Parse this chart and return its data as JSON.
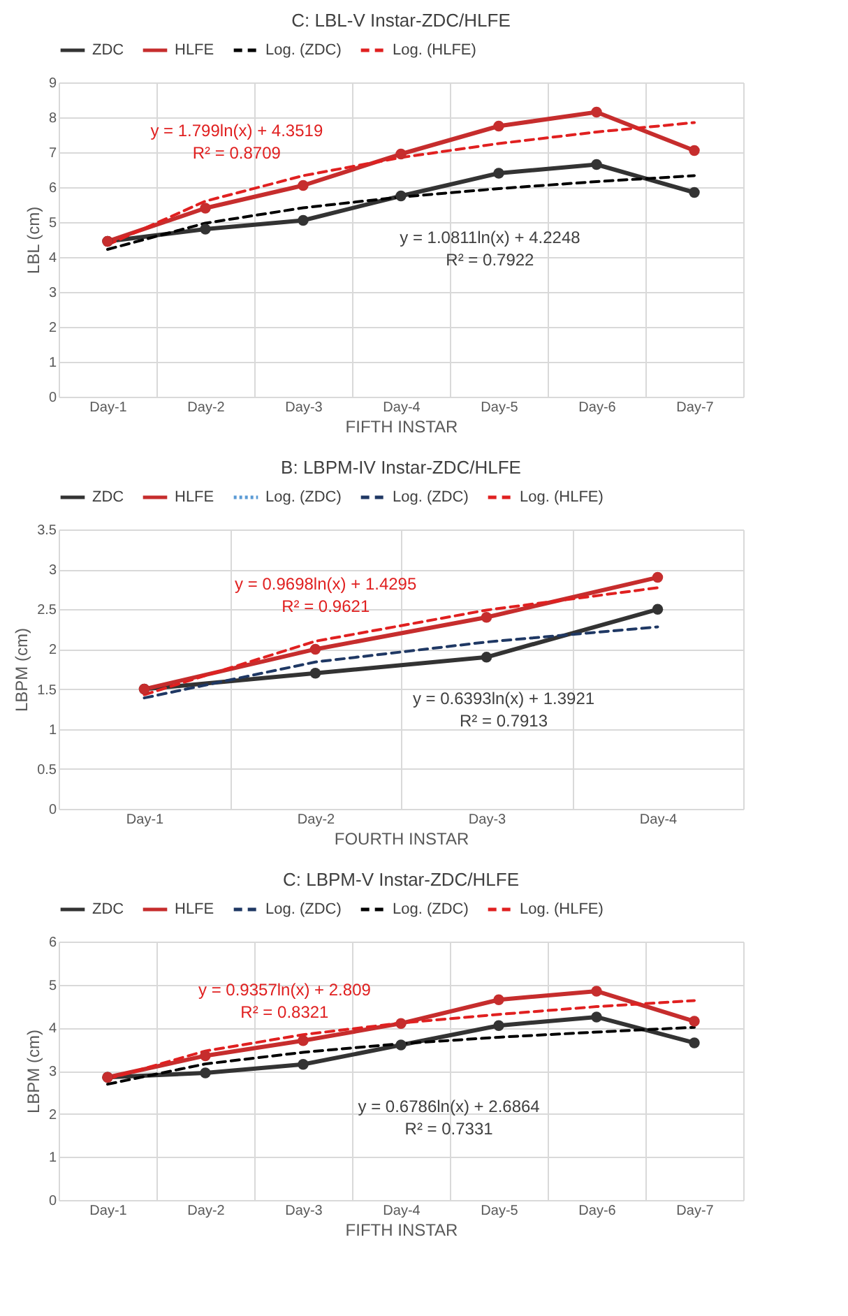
{
  "chart_data": [
    {
      "type": "line",
      "title": "C:  LBL-V   Instar-ZDC/HLFE",
      "xlabel": "FIFTH INSTAR",
      "ylabel": "LBL (cm)",
      "categories": [
        "Day-1",
        "Day-2",
        "Day-3",
        "Day-4",
        "Day-5",
        "Day-6",
        "Day-7"
      ],
      "series": [
        {
          "name": "ZDC",
          "color": "#333333",
          "marker": "circle",
          "line_style": "solid",
          "values": [
            4.45,
            4.8,
            5.05,
            5.75,
            6.4,
            6.65,
            5.85
          ]
        },
        {
          "name": "HLFE",
          "color": "#c62d2d",
          "marker": "circle",
          "line_style": "solid",
          "values": [
            4.45,
            5.4,
            6.05,
            6.95,
            7.75,
            8.15,
            7.05
          ]
        },
        {
          "name": "Log. (ZDC)",
          "color": "#000000",
          "marker": "none",
          "line_style": "dashed",
          "values": [
            4.22,
            4.97,
            5.41,
            5.72,
            5.96,
            6.16,
            6.33
          ]
        },
        {
          "name": "Log. (HLFE)",
          "color": "#e02020",
          "marker": "none",
          "line_style": "dashed",
          "values": [
            4.35,
            5.6,
            6.33,
            6.85,
            7.25,
            7.58,
            7.85
          ]
        }
      ],
      "ylim": [
        0,
        9
      ],
      "yticks": [
        0,
        1,
        2,
        3,
        4,
        5,
        6,
        7,
        8,
        9
      ],
      "grid": true,
      "legend": "top",
      "annotations": [
        "y = 1.799ln(x) + 4.3519\nR² = 0.8709",
        "y = 1.0811ln(x) + 4.2248\nR² = 0.7922"
      ]
    },
    {
      "type": "line",
      "title": "B:  LBPM-IV Instar-ZDC/HLFE",
      "xlabel": "FOURTH INSTAR",
      "ylabel": "LBPM (cm)",
      "categories": [
        "Day-1",
        "Day-2",
        "Day-3",
        "Day-4"
      ],
      "series": [
        {
          "name": "ZDC",
          "color": "#333333",
          "marker": "circle",
          "line_style": "solid",
          "values": [
            1.5,
            1.7,
            1.9,
            2.5
          ]
        },
        {
          "name": "HLFE",
          "color": "#c62d2d",
          "marker": "circle",
          "line_style": "solid",
          "values": [
            1.5,
            2.0,
            2.4,
            2.9
          ]
        },
        {
          "name": "Log. (ZDC)",
          "color": "#5b9bd5",
          "marker": "none",
          "line_style": "dotted",
          "values": [
            null,
            null,
            null,
            null
          ]
        },
        {
          "name": "Log. (ZDC)",
          "color": "#1f3864",
          "marker": "none",
          "line_style": "dashed",
          "values": [
            1.39,
            1.84,
            2.09,
            2.28
          ]
        },
        {
          "name": "Log. (HLFE)",
          "color": "#e02020",
          "marker": "none",
          "line_style": "dashed",
          "values": [
            1.43,
            2.1,
            2.49,
            2.77
          ]
        }
      ],
      "ylim": [
        0,
        3.5
      ],
      "yticks": [
        0,
        0.5,
        1,
        1.5,
        2,
        2.5,
        3,
        3.5
      ],
      "grid": true,
      "legend": "top",
      "annotations": [
        "y = 0.9698ln(x) + 1.4295\nR² = 0.9621",
        "y = 0.6393ln(x) + 1.3921\nR² = 0.7913"
      ]
    },
    {
      "type": "line",
      "title": "C: LBPM-V Instar-ZDC/HLFE",
      "xlabel": "FIFTH INSTAR",
      "ylabel": "LBPM (cm)",
      "categories": [
        "Day-1",
        "Day-2",
        "Day-3",
        "Day-4",
        "Day-5",
        "Day-6",
        "Day-7"
      ],
      "series": [
        {
          "name": "ZDC",
          "color": "#333333",
          "marker": "circle",
          "line_style": "solid",
          "values": [
            2.85,
            2.95,
            3.15,
            3.6,
            4.05,
            4.25,
            3.65
          ]
        },
        {
          "name": "HLFE",
          "color": "#c62d2d",
          "marker": "circle",
          "line_style": "solid",
          "values": [
            2.85,
            3.35,
            3.7,
            4.1,
            4.65,
            4.85,
            4.15
          ]
        },
        {
          "name": "Log. (ZDC)",
          "color": "#1f3864",
          "marker": "none",
          "line_style": "dashed",
          "values": [
            null,
            null,
            null,
            null,
            null,
            null,
            null
          ]
        },
        {
          "name": "Log. (ZDC)",
          "color": "#000000",
          "marker": "none",
          "line_style": "dashed",
          "values": [
            2.69,
            3.16,
            3.43,
            3.63,
            3.78,
            3.9,
            4.01
          ]
        },
        {
          "name": "Log. (HLFE)",
          "color": "#e02020",
          "marker": "none",
          "line_style": "dashed",
          "values": [
            2.81,
            3.46,
            3.84,
            4.11,
            4.31,
            4.49,
            4.63
          ]
        }
      ],
      "ylim": [
        0,
        6
      ],
      "yticks": [
        0,
        1,
        2,
        3,
        4,
        5,
        6
      ],
      "grid": true,
      "legend": "top",
      "annotations": [
        "y = 0.9357ln(x) + 2.809\nR² = 0.8321",
        "y = 0.6786ln(x) + 2.6864\nR² = 0.7331"
      ]
    }
  ]
}
